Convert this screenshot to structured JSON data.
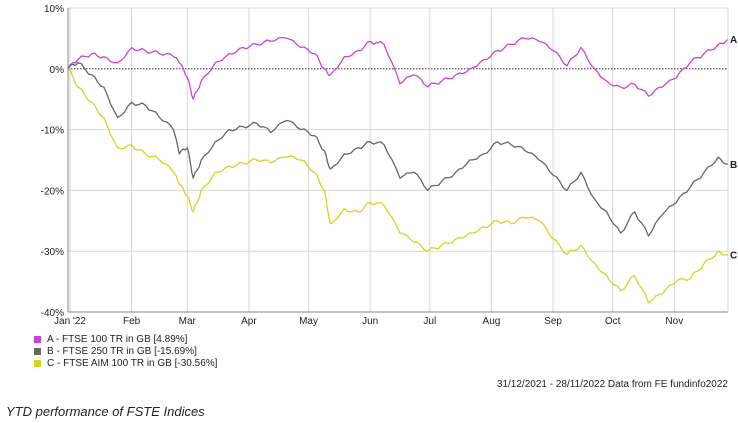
{
  "chart_data": {
    "type": "line",
    "title": "",
    "xlabel": "",
    "ylabel": "",
    "ylim": [
      -40,
      10
    ],
    "yticks": [
      "10%",
      "0%",
      "-10%",
      "-20%",
      "-30%",
      "-40%"
    ],
    "xticks": [
      "Jan '22",
      "Feb",
      "Mar",
      "Apr",
      "May",
      "Jun",
      "Jul",
      "Aug",
      "Sep",
      "Oct",
      "Nov"
    ],
    "grid": true,
    "zero_line": "dotted",
    "legend_placement": "bottom-left",
    "series": [
      {
        "name": "A - FTSE 100 TR in GB [4.89%]",
        "end_label": "A",
        "color": "#cc44cc",
        "x": [
          "2021-12-31",
          "2022-01-05",
          "2022-01-12",
          "2022-01-18",
          "2022-01-25",
          "2022-02-01",
          "2022-02-08",
          "2022-02-15",
          "2022-02-22",
          "2022-02-25",
          "2022-03-01",
          "2022-03-04",
          "2022-03-08",
          "2022-03-15",
          "2022-03-22",
          "2022-03-29",
          "2022-04-05",
          "2022-04-12",
          "2022-04-20",
          "2022-04-27",
          "2022-05-04",
          "2022-05-09",
          "2022-05-12",
          "2022-05-19",
          "2022-05-26",
          "2022-06-01",
          "2022-06-08",
          "2022-06-16",
          "2022-06-23",
          "2022-06-30",
          "2022-07-07",
          "2022-07-14",
          "2022-07-21",
          "2022-07-28",
          "2022-08-04",
          "2022-08-11",
          "2022-08-18",
          "2022-08-25",
          "2022-09-01",
          "2022-09-08",
          "2022-09-15",
          "2022-09-22",
          "2022-09-28",
          "2022-10-05",
          "2022-10-12",
          "2022-10-19",
          "2022-10-26",
          "2022-11-02",
          "2022-11-09",
          "2022-11-16",
          "2022-11-23",
          "2022-11-28"
        ],
        "values": [
          0.0,
          1.5,
          2.5,
          2.0,
          1.0,
          3.5,
          3.0,
          2.5,
          2.0,
          1.0,
          -1.5,
          -5.0,
          -2.0,
          1.0,
          2.5,
          3.5,
          4.0,
          4.5,
          5.0,
          3.5,
          2.5,
          0.0,
          -1.0,
          2.0,
          3.0,
          4.5,
          4.0,
          -2.5,
          -1.0,
          -3.0,
          -2.0,
          -1.0,
          0.0,
          1.5,
          3.0,
          4.0,
          5.0,
          4.5,
          3.0,
          0.5,
          3.5,
          0.0,
          -2.0,
          -3.0,
          -2.5,
          -4.5,
          -3.0,
          -1.5,
          1.0,
          2.5,
          4.0,
          4.89
        ]
      },
      {
        "name": "B - FTSE 250 TR in GB [-15.69%]",
        "end_label": "B",
        "color": "#666666",
        "x": [
          "2021-12-31",
          "2022-01-05",
          "2022-01-12",
          "2022-01-18",
          "2022-01-25",
          "2022-02-01",
          "2022-02-08",
          "2022-02-15",
          "2022-02-22",
          "2022-02-25",
          "2022-03-01",
          "2022-03-04",
          "2022-03-08",
          "2022-03-15",
          "2022-03-22",
          "2022-03-29",
          "2022-04-05",
          "2022-04-12",
          "2022-04-20",
          "2022-04-27",
          "2022-05-04",
          "2022-05-09",
          "2022-05-12",
          "2022-05-19",
          "2022-05-26",
          "2022-06-01",
          "2022-06-08",
          "2022-06-16",
          "2022-06-23",
          "2022-06-30",
          "2022-07-07",
          "2022-07-14",
          "2022-07-21",
          "2022-07-28",
          "2022-08-04",
          "2022-08-11",
          "2022-08-18",
          "2022-08-25",
          "2022-09-01",
          "2022-09-08",
          "2022-09-15",
          "2022-09-22",
          "2022-09-28",
          "2022-10-05",
          "2022-10-12",
          "2022-10-19",
          "2022-10-26",
          "2022-11-02",
          "2022-11-09",
          "2022-11-16",
          "2022-11-23",
          "2022-11-28"
        ],
        "values": [
          0.0,
          1.0,
          -1.0,
          -3.0,
          -8.0,
          -5.5,
          -6.0,
          -8.0,
          -10.0,
          -14.0,
          -13.0,
          -18.0,
          -15.0,
          -12.0,
          -10.0,
          -9.5,
          -9.0,
          -10.5,
          -8.5,
          -10.0,
          -11.0,
          -13.5,
          -16.5,
          -14.0,
          -13.0,
          -12.0,
          -12.5,
          -18.0,
          -17.0,
          -20.0,
          -18.5,
          -17.0,
          -15.0,
          -14.0,
          -12.0,
          -12.5,
          -13.5,
          -15.0,
          -17.5,
          -20.0,
          -17.0,
          -21.5,
          -23.5,
          -27.0,
          -23.5,
          -27.5,
          -24.0,
          -22.0,
          -19.5,
          -17.0,
          -14.5,
          -15.69
        ]
      },
      {
        "name": "C - FTSE AIM 100 TR in GB [-30.56%]",
        "end_label": "C",
        "color": "#d4d424",
        "x": [
          "2021-12-31",
          "2022-01-05",
          "2022-01-12",
          "2022-01-18",
          "2022-01-25",
          "2022-02-01",
          "2022-02-08",
          "2022-02-15",
          "2022-02-22",
          "2022-02-25",
          "2022-03-01",
          "2022-03-04",
          "2022-03-08",
          "2022-03-15",
          "2022-03-22",
          "2022-03-29",
          "2022-04-05",
          "2022-04-12",
          "2022-04-20",
          "2022-04-27",
          "2022-05-04",
          "2022-05-09",
          "2022-05-12",
          "2022-05-19",
          "2022-05-26",
          "2022-06-01",
          "2022-06-08",
          "2022-06-16",
          "2022-06-23",
          "2022-06-30",
          "2022-07-07",
          "2022-07-14",
          "2022-07-21",
          "2022-07-28",
          "2022-08-04",
          "2022-08-11",
          "2022-08-18",
          "2022-08-25",
          "2022-09-01",
          "2022-09-08",
          "2022-09-15",
          "2022-09-22",
          "2022-09-28",
          "2022-10-05",
          "2022-10-12",
          "2022-10-19",
          "2022-10-26",
          "2022-11-02",
          "2022-11-09",
          "2022-11-16",
          "2022-11-23",
          "2022-11-28"
        ],
        "values": [
          0.0,
          -3.0,
          -5.5,
          -8.0,
          -13.0,
          -12.5,
          -14.0,
          -15.0,
          -17.0,
          -19.0,
          -21.0,
          -23.5,
          -20.0,
          -17.0,
          -16.0,
          -15.5,
          -15.0,
          -15.5,
          -14.5,
          -15.0,
          -17.0,
          -20.0,
          -25.5,
          -23.0,
          -23.5,
          -22.0,
          -22.5,
          -27.0,
          -28.5,
          -30.0,
          -29.0,
          -28.0,
          -27.0,
          -26.0,
          -25.0,
          -25.5,
          -24.5,
          -25.0,
          -28.0,
          -30.5,
          -29.0,
          -32.0,
          -34.0,
          -36.5,
          -34.0,
          -38.5,
          -37.0,
          -35.0,
          -34.5,
          -32.0,
          -30.0,
          -30.56
        ]
      }
    ]
  },
  "source": "31/12/2021 - 28/11/2022 Data from FE fundinfo2022",
  "caption": "YTD performance of FSTE Indices"
}
